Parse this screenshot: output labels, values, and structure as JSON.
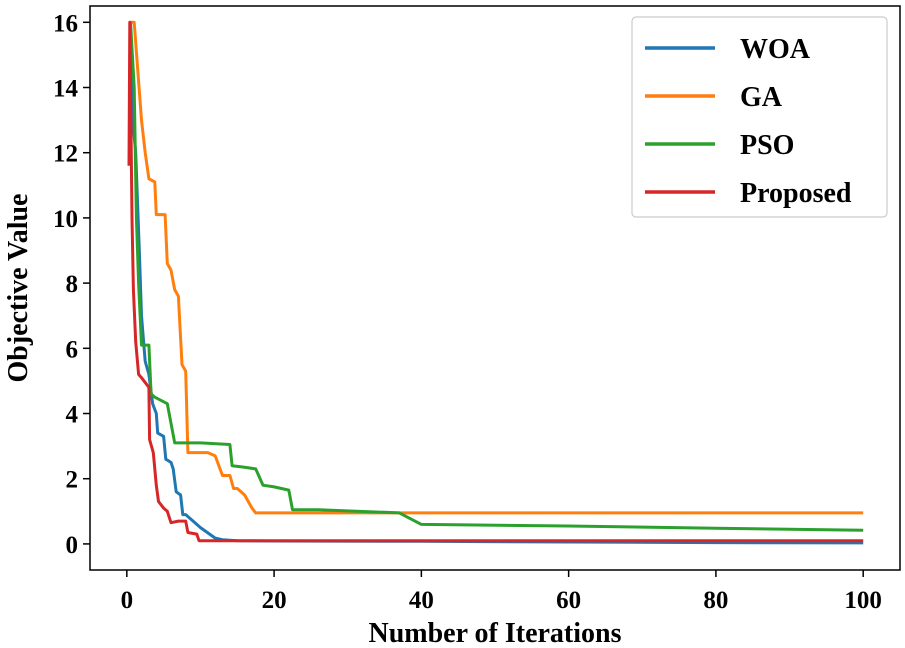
{
  "chart_data": {
    "type": "line",
    "title": "",
    "xlabel": "Number of Iterations",
    "ylabel": "Objective Value",
    "xlim": [
      -5,
      105
    ],
    "ylim": [
      -0.8,
      16.5
    ],
    "xticks": [
      0,
      20,
      40,
      60,
      80,
      100
    ],
    "yticks": [
      0,
      2,
      4,
      6,
      8,
      10,
      12,
      14,
      16
    ],
    "legend_position": "top-right",
    "series": [
      {
        "name": "WOA",
        "color": "#1f77b4",
        "points": [
          [
            0.5,
            16
          ],
          [
            0.8,
            13
          ],
          [
            1.2,
            12
          ],
          [
            1.7,
            9
          ],
          [
            2,
            7
          ],
          [
            2.5,
            5.6
          ],
          [
            3,
            5.2
          ],
          [
            3.5,
            4.3
          ],
          [
            4,
            4
          ],
          [
            4.2,
            3.4
          ],
          [
            5,
            3.3
          ],
          [
            5.3,
            2.6
          ],
          [
            6,
            2.5
          ],
          [
            6.3,
            2.3
          ],
          [
            6.7,
            1.6
          ],
          [
            7.3,
            1.5
          ],
          [
            7.6,
            0.9
          ],
          [
            8,
            0.9
          ],
          [
            9,
            0.7
          ],
          [
            10,
            0.5
          ],
          [
            12,
            0.18
          ],
          [
            13,
            0.13
          ],
          [
            15,
            0.1
          ],
          [
            20,
            0.09
          ],
          [
            40,
            0.08
          ],
          [
            60,
            0.06
          ],
          [
            80,
            0.04
          ],
          [
            100,
            0.03
          ]
        ]
      },
      {
        "name": "GA",
        "color": "#ff7f0e",
        "points": [
          [
            0.5,
            16
          ],
          [
            1,
            16
          ],
          [
            2,
            13
          ],
          [
            2.5,
            12
          ],
          [
            3,
            11.2
          ],
          [
            3.8,
            11.1
          ],
          [
            4,
            10.1
          ],
          [
            5.2,
            10.1
          ],
          [
            5.5,
            8.6
          ],
          [
            6,
            8.4
          ],
          [
            6.5,
            7.8
          ],
          [
            7,
            7.6
          ],
          [
            7.5,
            5.5
          ],
          [
            8,
            5.3
          ],
          [
            8.3,
            2.8
          ],
          [
            11,
            2.8
          ],
          [
            12,
            2.7
          ],
          [
            13,
            2.1
          ],
          [
            14,
            2.1
          ],
          [
            14.5,
            1.7
          ],
          [
            15,
            1.7
          ],
          [
            16,
            1.5
          ],
          [
            17,
            1.1
          ],
          [
            17.5,
            0.95
          ],
          [
            20,
            0.95
          ],
          [
            40,
            0.95
          ],
          [
            60,
            0.95
          ],
          [
            80,
            0.95
          ],
          [
            100,
            0.95
          ]
        ]
      },
      {
        "name": "PSO",
        "color": "#2ca02c",
        "points": [
          [
            0.5,
            16
          ],
          [
            1,
            14
          ],
          [
            1.3,
            10
          ],
          [
            1.6,
            8
          ],
          [
            2,
            6.1
          ],
          [
            3,
            6.1
          ],
          [
            3.3,
            4.6
          ],
          [
            3.8,
            4.5
          ],
          [
            5.5,
            4.3
          ],
          [
            6.5,
            3.1
          ],
          [
            10,
            3.1
          ],
          [
            14,
            3.05
          ],
          [
            14.3,
            2.4
          ],
          [
            16,
            2.35
          ],
          [
            17.5,
            2.3
          ],
          [
            18.5,
            1.8
          ],
          [
            20,
            1.75
          ],
          [
            22,
            1.65
          ],
          [
            22.5,
            1.05
          ],
          [
            26,
            1.05
          ],
          [
            37,
            0.95
          ],
          [
            40,
            0.6
          ],
          [
            60,
            0.55
          ],
          [
            80,
            0.48
          ],
          [
            100,
            0.42
          ]
        ]
      },
      {
        "name": "Proposed",
        "color": "#d62728",
        "points": [
          [
            0.3,
            11.6
          ],
          [
            0.4,
            16
          ],
          [
            0.7,
            10
          ],
          [
            0.9,
            7.8
          ],
          [
            1.2,
            6.2
          ],
          [
            1.6,
            5.2
          ],
          [
            2,
            5.1
          ],
          [
            3,
            4.8
          ],
          [
            3.1,
            3.2
          ],
          [
            3.6,
            2.8
          ],
          [
            4,
            1.8
          ],
          [
            4.3,
            1.3
          ],
          [
            5,
            1.1
          ],
          [
            5.5,
            1
          ],
          [
            6,
            0.65
          ],
          [
            7,
            0.7
          ],
          [
            8,
            0.7
          ],
          [
            8.3,
            0.35
          ],
          [
            9.5,
            0.3
          ],
          [
            9.8,
            0.1
          ],
          [
            15,
            0.1
          ],
          [
            40,
            0.1
          ],
          [
            60,
            0.1
          ],
          [
            80,
            0.1
          ],
          [
            100,
            0.1
          ]
        ]
      }
    ]
  }
}
